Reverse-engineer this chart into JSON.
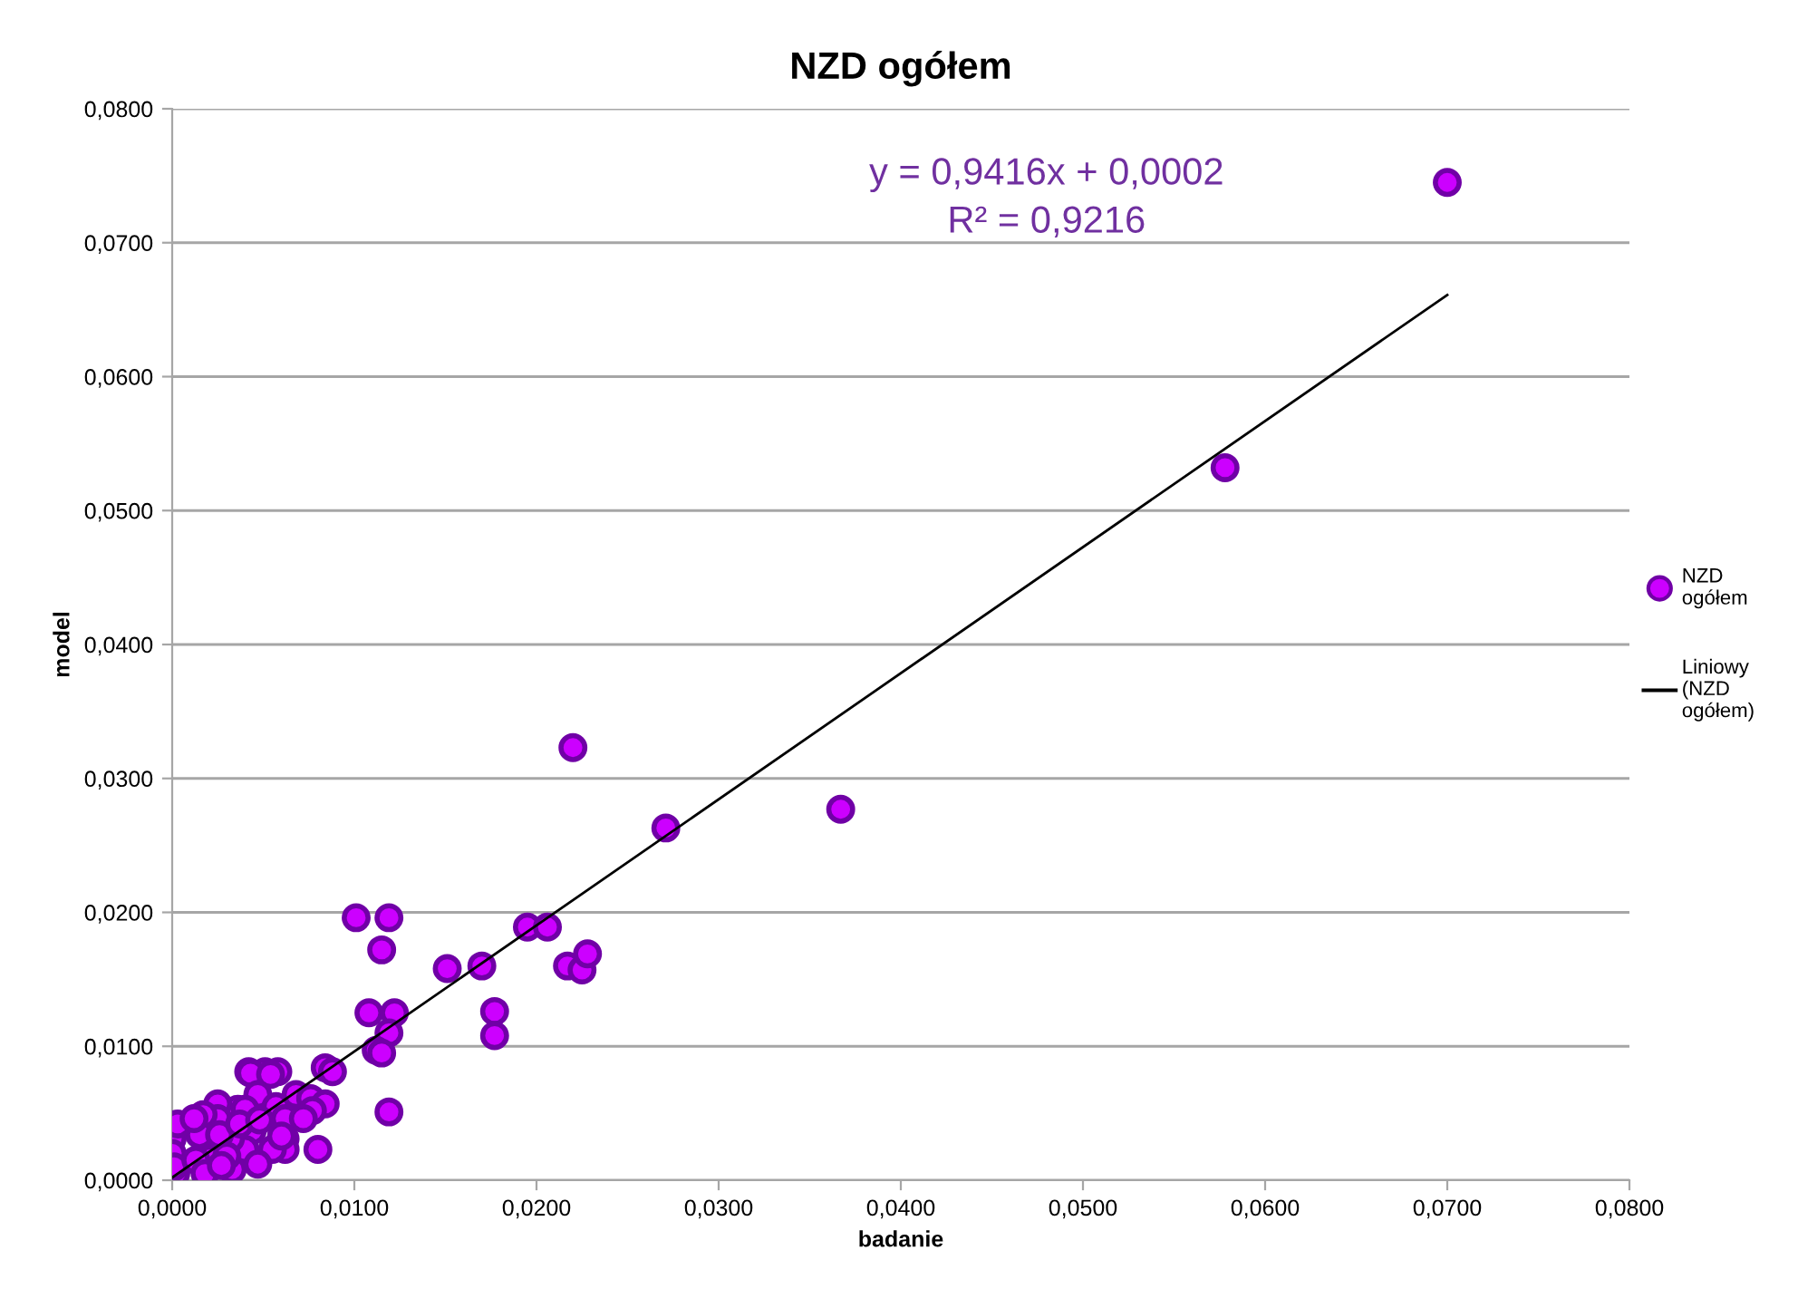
{
  "chart_data": {
    "type": "scatter",
    "title": "NZD ogółem",
    "xlabel": "badanie",
    "ylabel": "model",
    "annotations": [
      "y = 0,9416x + 0,0002",
      "R² = 0,9216"
    ],
    "xlim": [
      0,
      0.08
    ],
    "ylim": [
      0,
      0.08
    ],
    "xticks": [
      {
        "value": 0,
        "label": "0,0000"
      },
      {
        "value": 0.01,
        "label": "0,0100"
      },
      {
        "value": 0.02,
        "label": "0,0200"
      },
      {
        "value": 0.03,
        "label": "0,0300"
      },
      {
        "value": 0.04,
        "label": "0,0400"
      },
      {
        "value": 0.05,
        "label": "0,0500"
      },
      {
        "value": 0.06,
        "label": "0,0600"
      },
      {
        "value": 0.07,
        "label": "0,0700"
      },
      {
        "value": 0.08,
        "label": "0,0800"
      }
    ],
    "yticks": [
      {
        "value": 0,
        "label": "0,0000"
      },
      {
        "value": 0.01,
        "label": "0,0100"
      },
      {
        "value": 0.02,
        "label": "0,0200"
      },
      {
        "value": 0.03,
        "label": "0,0300"
      },
      {
        "value": 0.04,
        "label": "0,0400"
      },
      {
        "value": 0.05,
        "label": "0,0500"
      },
      {
        "value": 0.06,
        "label": "0,0600"
      },
      {
        "value": 0.07,
        "label": "0,0700"
      },
      {
        "value": 0.08,
        "label": "0,0800"
      }
    ],
    "grid": "y",
    "legend": "right",
    "marker": "circle",
    "series": [
      {
        "name": "NZD\nogółem",
        "color": "#cc00ff",
        "x": [
          0.07,
          0.0578,
          0.0367,
          0.0271,
          0.022,
          0.0195,
          0.0206,
          0.0217,
          0.0225,
          0.0228,
          0.0151,
          0.017,
          0.0177,
          0.0177,
          0.0101,
          0.0119,
          0.0115,
          0.0108,
          0.0122,
          0.0119,
          0.0112,
          0.0115,
          0.0119,
          0.0042,
          0.0051,
          0.0058,
          0.0043,
          0.0054,
          0.0084,
          0.0088,
          0.0047,
          0.0068,
          0.0076,
          0.0084,
          0.0036,
          0.0025,
          0.0057,
          0.0077,
          0.0062,
          0.0072,
          0.0025,
          0.0044,
          0.0062,
          0.0062,
          0.008,
          0.0055,
          0.004,
          0.0032,
          0.0021,
          0.0033,
          0.0017,
          0.0015,
          0.0026,
          0.0,
          0.0002,
          0.0003,
          0.0012,
          0.004,
          0.003,
          0.0047,
          0.0,
          0.0001,
          0.0037,
          0.0048,
          0.006,
          0.0013,
          0.0018,
          0.0027
        ],
        "values": [
          0.0745,
          0.0532,
          0.0277,
          0.0263,
          0.0323,
          0.0189,
          0.0189,
          0.016,
          0.0157,
          0.0169,
          0.0158,
          0.016,
          0.0126,
          0.0108,
          0.0196,
          0.0196,
          0.0172,
          0.0125,
          0.0125,
          0.011,
          0.0097,
          0.0095,
          0.0051,
          0.0081,
          0.0081,
          0.0081,
          0.008,
          0.0079,
          0.0084,
          0.0081,
          0.0064,
          0.0064,
          0.0061,
          0.0057,
          0.0053,
          0.0057,
          0.0055,
          0.0052,
          0.0046,
          0.0046,
          0.0046,
          0.0037,
          0.0031,
          0.0023,
          0.0023,
          0.0023,
          0.0023,
          0.0031,
          0.0016,
          0.0008,
          0.0049,
          0.0034,
          0.0034,
          0.0031,
          0.0005,
          0.0042,
          0.0046,
          0.0053,
          0.0018,
          0.0012,
          0.002,
          0.001,
          0.0042,
          0.0045,
          0.0033,
          0.0015,
          0.0005,
          0.0011
        ]
      },
      {
        "name": "Liniowy\n(NZD\nogółem)",
        "type": "line",
        "color": "#000000",
        "marker": "none",
        "x": [
          0,
          0.07
        ],
        "values": [
          0.0002,
          0.0661
        ]
      }
    ]
  }
}
